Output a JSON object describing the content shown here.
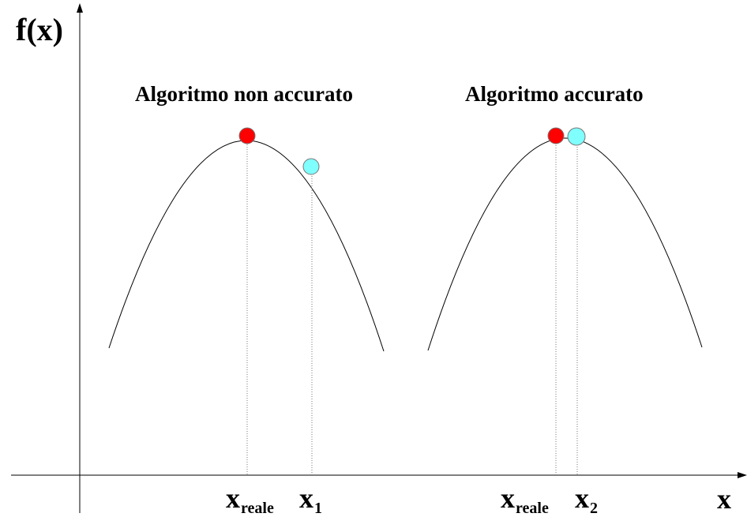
{
  "axes": {
    "y_label": "f(x)",
    "x_label": "x"
  },
  "panels": [
    {
      "title": "Algoritmo non accurato",
      "true_point": {
        "name": "x",
        "subscript": "reale",
        "color": "#ff0000"
      },
      "approx_point": {
        "name": "x",
        "subscript": "1",
        "color": "#80ffff"
      }
    },
    {
      "title": "Algoritmo accurato",
      "true_point": {
        "name": "x",
        "subscript": "reale",
        "color": "#ff0000"
      },
      "approx_point": {
        "name": "x",
        "subscript": "2",
        "color": "#80ffff"
      }
    }
  ]
}
